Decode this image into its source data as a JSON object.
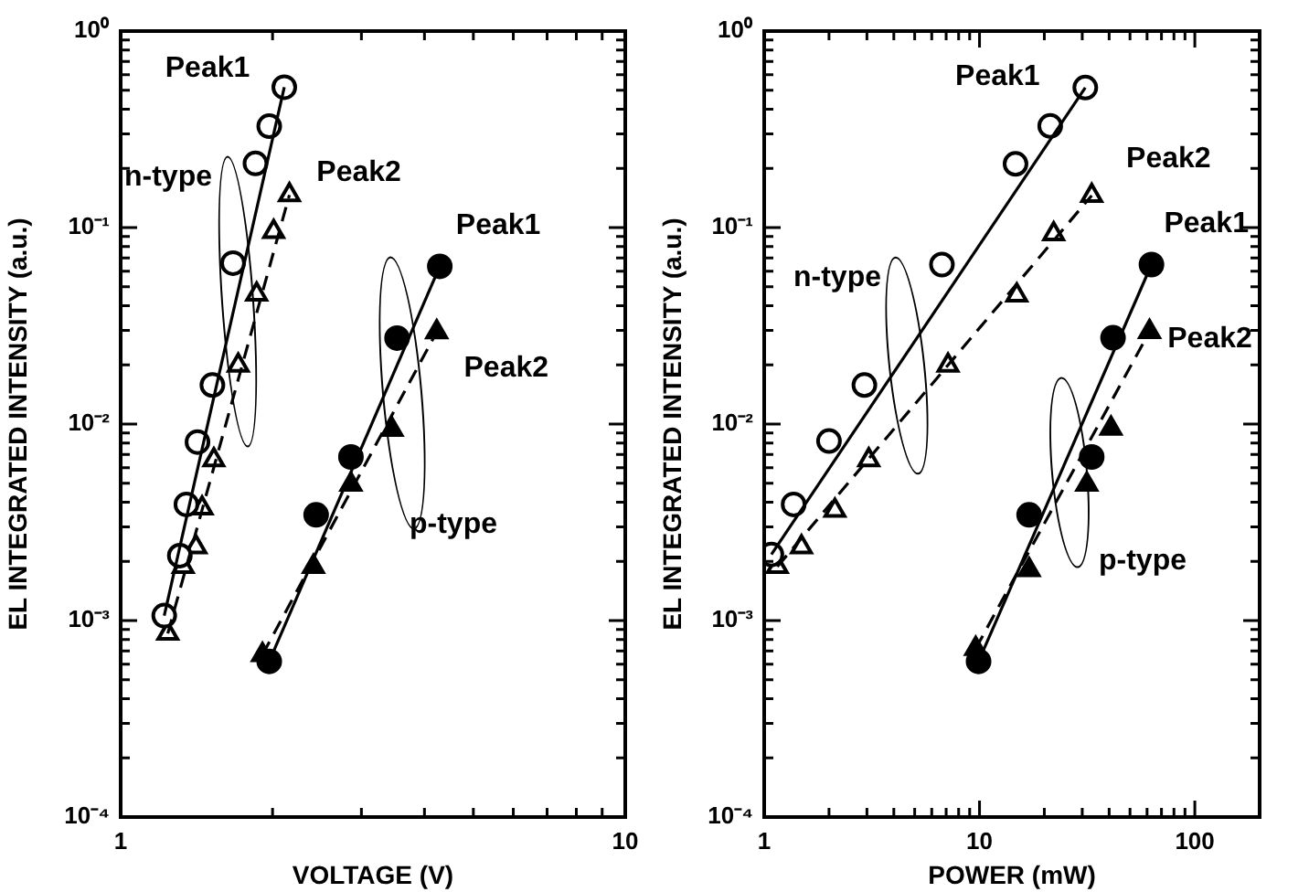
{
  "chart_data": [
    {
      "type": "scatter",
      "xlabel": "VOLTAGE (V)",
      "ylabel": "EL INTEGRATED INTENSITY (a.u.)",
      "log": "xy",
      "grid": false,
      "legend": "right",
      "xlim": [
        1,
        10
      ],
      "xticks": [
        1,
        {
          "value": 2,
          "label": null
        },
        {
          "value": 3,
          "label": null
        },
        {
          "value": 4,
          "label": null
        },
        {
          "value": 5,
          "label": null
        },
        {
          "value": 6,
          "label": null
        },
        {
          "value": 7,
          "label": null
        },
        {
          "value": 8,
          "label": null
        },
        {
          "value": 9,
          "label": null
        },
        10
      ],
      "ylim": [
        0.0001,
        1
      ],
      "yticks": [
        {
          "value": 0.0001,
          "label": "10⁻⁴"
        },
        {
          "value": 0.0002,
          "label": null
        },
        {
          "value": 0.0003,
          "label": null
        },
        {
          "value": 0.0004,
          "label": null
        },
        {
          "value": 0.0005,
          "label": null
        },
        {
          "value": 0.0006,
          "label": null
        },
        {
          "value": 0.0007,
          "label": null
        },
        {
          "value": 0.0008,
          "label": null
        },
        {
          "value": 0.0009,
          "label": null
        },
        {
          "value": 0.001,
          "label": "10⁻³"
        },
        {
          "value": 0.002,
          "label": null
        },
        {
          "value": 0.003,
          "label": null
        },
        {
          "value": 0.004,
          "label": null
        },
        {
          "value": 0.005,
          "label": null
        },
        {
          "value": 0.006,
          "label": null
        },
        {
          "value": 0.007,
          "label": null
        },
        {
          "value": 0.008,
          "label": null
        },
        {
          "value": 0.009,
          "label": null
        },
        {
          "value": 0.01,
          "label": "10⁻²"
        },
        {
          "value": 0.02,
          "label": null
        },
        {
          "value": 0.03,
          "label": null
        },
        {
          "value": 0.04,
          "label": null
        },
        {
          "value": 0.05,
          "label": null
        },
        {
          "value": 0.06,
          "label": null
        },
        {
          "value": 0.07,
          "label": null
        },
        {
          "value": 0.08,
          "label": null
        },
        {
          "value": 0.09,
          "label": null
        },
        {
          "value": 0.1,
          "label": "10⁻¹"
        },
        {
          "value": 0.2,
          "label": null
        },
        {
          "value": 0.3,
          "label": null
        },
        {
          "value": 0.4,
          "label": null
        },
        {
          "value": 0.5,
          "label": null
        },
        {
          "value": 0.6,
          "label": null
        },
        {
          "value": 0.7,
          "label": null
        },
        {
          "value": 0.8,
          "label": null
        },
        {
          "value": 0.9,
          "label": null
        },
        {
          "value": 1,
          "label": "10⁰"
        }
      ],
      "series": [
        {
          "type": "scatter",
          "name": "Peak1",
          "marker": "circle",
          "color": "#ffffff",
          "x": [
            1.22,
            1.31,
            1.35,
            1.42,
            1.52,
            1.67,
            1.85,
            1.97,
            2.11
          ],
          "values": [
            0.00106,
            0.00214,
            0.0039,
            0.0081,
            0.0158,
            0.0659,
            0.212,
            0.328,
            0.518
          ]
        },
        {
          "type": "scatter",
          "name": "Peak2",
          "marker": "triangle",
          "color": "#ffffff",
          "x": [
            1.24,
            1.33,
            1.41,
            1.45,
            1.53,
            1.71,
            1.86,
            2.01,
            2.16
          ],
          "values": [
            0.00086,
            0.00188,
            0.00237,
            0.00373,
            0.00656,
            0.0199,
            0.0458,
            0.0954,
            0.1465
          ]
        },
        {
          "type": "scatter",
          "name": "Peak1",
          "marker": "circle",
          "color": "#000000",
          "x": [
            1.97,
            2.44,
            2.86,
            3.53,
            4.29
          ],
          "values": [
            0.00062,
            0.00345,
            0.0068,
            0.0274,
            0.0635
          ]
        },
        {
          "type": "scatter",
          "name": "Peak2",
          "marker": "triangle",
          "color": "#000000",
          "x": [
            1.91,
            2.41,
            2.86,
            3.45,
            4.23
          ],
          "values": [
            0.00067,
            0.00188,
            0.00493,
            0.00938,
            0.0294
          ]
        },
        {
          "type": "line",
          "marker": "none",
          "line_style": "solid",
          "color": "#000000",
          "x": [
            1.22,
            2.11
          ],
          "values": [
            0.00106,
            0.518
          ]
        },
        {
          "type": "line",
          "marker": "none",
          "line_style": "dashed",
          "color": "#000000",
          "x": [
            1.24,
            2.16
          ],
          "values": [
            0.00086,
            0.1465
          ]
        },
        {
          "type": "line",
          "marker": "none",
          "line_style": "solid",
          "color": "#000000",
          "x": [
            1.97,
            4.29
          ],
          "values": [
            0.00062,
            0.0635
          ]
        },
        {
          "type": "line",
          "marker": "none",
          "line_style": "dashed",
          "color": "#000000",
          "x": [
            1.91,
            4.23
          ],
          "values": [
            0.00067,
            0.0294
          ]
        }
      ],
      "annotations": [
        "n-type",
        "p-type"
      ]
    },
    {
      "type": "scatter",
      "xlabel": "POWER (mW)",
      "ylabel": "EL INTEGRATED INTENSITY (a.u.)",
      "log": "xy",
      "grid": false,
      "legend": "right",
      "xlim": [
        1,
        200
      ],
      "xticks": [
        1,
        {
          "value": 2,
          "label": null
        },
        {
          "value": 3,
          "label": null
        },
        {
          "value": 4,
          "label": null
        },
        {
          "value": 5,
          "label": null
        },
        {
          "value": 6,
          "label": null
        },
        {
          "value": 7,
          "label": null
        },
        {
          "value": 8,
          "label": null
        },
        {
          "value": 9,
          "label": null
        },
        10,
        {
          "value": 20,
          "label": null
        },
        {
          "value": 30,
          "label": null
        },
        {
          "value": 40,
          "label": null
        },
        {
          "value": 50,
          "label": null
        },
        {
          "value": 60,
          "label": null
        },
        {
          "value": 70,
          "label": null
        },
        {
          "value": 80,
          "label": null
        },
        {
          "value": 90,
          "label": null
        },
        100,
        {
          "value": 200,
          "label": null
        }
      ],
      "ylim": [
        0.0001,
        1
      ],
      "yticks": [
        {
          "value": 0.0001,
          "label": "10⁻⁴"
        },
        {
          "value": 0.0002,
          "label": null
        },
        {
          "value": 0.0003,
          "label": null
        },
        {
          "value": 0.0004,
          "label": null
        },
        {
          "value": 0.0005,
          "label": null
        },
        {
          "value": 0.0006,
          "label": null
        },
        {
          "value": 0.0007,
          "label": null
        },
        {
          "value": 0.0008,
          "label": null
        },
        {
          "value": 0.0009,
          "label": null
        },
        {
          "value": 0.001,
          "label": "10⁻³"
        },
        {
          "value": 0.002,
          "label": null
        },
        {
          "value": 0.003,
          "label": null
        },
        {
          "value": 0.004,
          "label": null
        },
        {
          "value": 0.005,
          "label": null
        },
        {
          "value": 0.006,
          "label": null
        },
        {
          "value": 0.007,
          "label": null
        },
        {
          "value": 0.008,
          "label": null
        },
        {
          "value": 0.009,
          "label": null
        },
        {
          "value": 0.01,
          "label": "10⁻²"
        },
        {
          "value": 0.02,
          "label": null
        },
        {
          "value": 0.03,
          "label": null
        },
        {
          "value": 0.04,
          "label": null
        },
        {
          "value": 0.05,
          "label": null
        },
        {
          "value": 0.06,
          "label": null
        },
        {
          "value": 0.07,
          "label": null
        },
        {
          "value": 0.08,
          "label": null
        },
        {
          "value": 0.09,
          "label": null
        },
        {
          "value": 0.1,
          "label": "10⁻¹"
        },
        {
          "value": 0.2,
          "label": null
        },
        {
          "value": 0.3,
          "label": null
        },
        {
          "value": 0.4,
          "label": null
        },
        {
          "value": 0.5,
          "label": null
        },
        {
          "value": 0.6,
          "label": null
        },
        {
          "value": 0.7,
          "label": null
        },
        {
          "value": 0.8,
          "label": null
        },
        {
          "value": 0.9,
          "label": null
        },
        {
          "value": 1,
          "label": "10⁰"
        }
      ],
      "series": [
        {
          "type": "scatter",
          "name": "Peak1",
          "marker": "circle",
          "color": "#ffffff",
          "x": [
            1.08,
            1.37,
            2.0,
            2.92,
            6.69,
            14.7,
            21.3,
            31.0
          ],
          "values": [
            0.00217,
            0.0039,
            0.0082,
            0.0158,
            0.0648,
            0.211,
            0.329,
            0.516
          ]
        },
        {
          "type": "scatter",
          "name": "Peak2",
          "marker": "triangle",
          "color": "#ffffff",
          "x": [
            1.15,
            1.49,
            2.13,
            3.06,
            7.14,
            14.9,
            22.1,
            33.2
          ],
          "values": [
            0.00188,
            0.00237,
            0.00363,
            0.00656,
            0.0199,
            0.0453,
            0.0928,
            0.1456
          ]
        },
        {
          "type": "scatter",
          "name": "Peak1",
          "marker": "circle",
          "color": "#000000",
          "x": [
            9.9,
            17.0,
            33.2,
            41.7,
            62.9
          ],
          "values": [
            0.00062,
            0.00345,
            0.0068,
            0.0275,
            0.0648
          ]
        },
        {
          "type": "scatter",
          "name": "Peak2",
          "marker": "triangle",
          "color": "#000000",
          "x": [
            9.6,
            17.0,
            31.5,
            40.8,
            61.6
          ],
          "values": [
            0.00072,
            0.00181,
            0.00493,
            0.0095,
            0.0295
          ]
        },
        {
          "type": "line",
          "marker": "none",
          "line_style": "solid",
          "color": "#000000",
          "x": [
            1.08,
            31.0
          ],
          "values": [
            0.00217,
            0.516
          ]
        },
        {
          "type": "line",
          "marker": "none",
          "line_style": "dashed",
          "color": "#000000",
          "x": [
            1.15,
            33.2
          ],
          "values": [
            0.00188,
            0.1456
          ]
        },
        {
          "type": "line",
          "marker": "none",
          "line_style": "solid",
          "color": "#000000",
          "x": [
            9.9,
            62.9
          ],
          "values": [
            0.00062,
            0.0648
          ]
        },
        {
          "type": "line",
          "marker": "none",
          "line_style": "dashed",
          "color": "#000000",
          "x": [
            9.6,
            61.6
          ],
          "values": [
            0.00072,
            0.0295
          ]
        }
      ],
      "annotations": [
        "n-type",
        "p-type"
      ]
    }
  ]
}
